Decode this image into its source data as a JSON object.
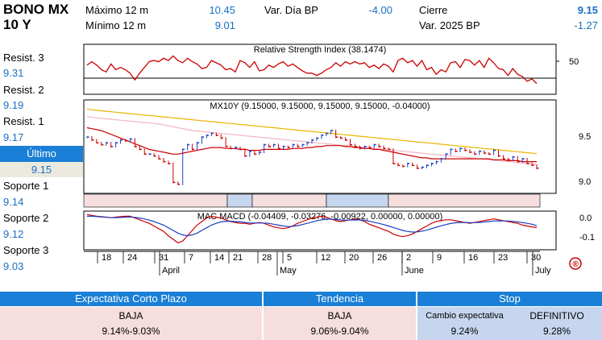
{
  "header": {
    "title_line1": "BONO MX",
    "title_line2": "10 Y",
    "max12_label": "Máximo 12 m",
    "max12_value": "10.45",
    "min12_label": "Mínimo 12 m",
    "min12_value": "9.01",
    "vardia_label": "Var. Día BP",
    "vardia_value": "-4.00",
    "cierre_label": "Cierre",
    "cierre_value": "9.15",
    "var2025_label": "Var. 2025 BP",
    "var2025_value": "-1.27"
  },
  "levels": {
    "resist3_label": "Resist. 3",
    "resist3_value": "9.31",
    "resist2_label": "Resist. 2",
    "resist2_value": "9.19",
    "resist1_label": "Resist. 1",
    "resist1_value": "9.17",
    "ultimo_label": "Último",
    "ultimo_value": "9.15",
    "soporte1_label": "Soporte 1",
    "soporte1_value": "9.14",
    "soporte2_label": "Soporte 2",
    "soporte2_value": "9.12",
    "soporte3_label": "Soporte 3",
    "soporte3_value": "9.03"
  },
  "chart_data": [
    {
      "type": "line",
      "title": "Relative Strength Index (38.1474)",
      "ylim": [
        30,
        70
      ],
      "yticks": [
        "50"
      ],
      "values": [
        54,
        57,
        54,
        50,
        48,
        55,
        50,
        52,
        50,
        47,
        41,
        47,
        52,
        57,
        58,
        57,
        60,
        58,
        62,
        58,
        56,
        60,
        57,
        55,
        51,
        52,
        58,
        56,
        54,
        50,
        51,
        48,
        58,
        56,
        52,
        57,
        49,
        50,
        54,
        52,
        55,
        57,
        53,
        55,
        52,
        49,
        47,
        47,
        45,
        47,
        50,
        52,
        56,
        53,
        57,
        55,
        57,
        55,
        56,
        52,
        54,
        51,
        55,
        53,
        48,
        58,
        60,
        56,
        58,
        53,
        58,
        50,
        52,
        46,
        50,
        48,
        56,
        57,
        52,
        59,
        58,
        54,
        58,
        52,
        60,
        56,
        51,
        50,
        45,
        51,
        46,
        44,
        40,
        42,
        38
      ]
    },
    {
      "type": "bar",
      "title": "MX10Y (9.15000, 9.15000, 9.15000, 9.15000, -0.04000)",
      "ylim": [
        8.9,
        9.85
      ],
      "yticks": [
        "9.5",
        "9.0"
      ],
      "close": [
        9.48,
        9.45,
        9.42,
        9.4,
        9.42,
        9.38,
        9.42,
        9.45,
        9.44,
        9.46,
        9.38,
        9.35,
        9.3,
        9.3,
        9.28,
        9.25,
        9.22,
        9.2,
        9.0,
        8.98,
        9.35,
        9.4,
        9.35,
        9.42,
        9.48,
        9.5,
        9.52,
        9.5,
        9.47,
        9.38,
        9.36,
        9.37,
        9.35,
        9.28,
        9.33,
        9.3,
        9.32,
        9.4,
        9.38,
        9.4,
        9.36,
        9.38,
        9.37,
        9.4,
        9.38,
        9.4,
        9.42,
        9.45,
        9.47,
        9.5,
        9.52,
        9.55,
        9.48,
        9.47,
        9.45,
        9.4,
        9.38,
        9.36,
        9.38,
        9.37,
        9.4,
        9.38,
        9.36,
        9.35,
        9.2,
        9.18,
        9.17,
        9.2,
        9.18,
        9.15,
        9.16,
        9.18,
        9.2,
        9.22,
        9.25,
        9.3,
        9.35,
        9.33,
        9.36,
        9.34,
        9.32,
        9.3,
        9.33,
        9.31,
        9.3,
        9.34,
        9.28,
        9.25,
        9.24,
        9.27,
        9.22,
        9.25,
        9.2,
        9.18,
        9.15
      ],
      "series": [
        {
          "values": [
            9.78,
            9.77,
            9.765,
            9.76,
            9.755,
            9.75,
            9.745,
            9.74,
            9.735,
            9.73,
            9.725,
            9.72,
            9.715,
            9.71,
            9.705,
            9.7,
            9.695,
            9.69,
            9.685,
            9.68,
            9.675,
            9.67,
            9.665,
            9.66,
            9.655,
            9.65,
            9.645,
            9.64,
            9.635,
            9.63,
            9.625,
            9.62,
            9.615,
            9.61,
            9.605,
            9.6,
            9.595,
            9.59,
            9.585,
            9.58,
            9.575,
            9.57,
            9.565,
            9.56,
            9.555,
            9.55,
            9.545,
            9.54,
            9.535,
            9.53,
            9.525,
            9.52,
            9.515,
            9.51,
            9.505,
            9.5,
            9.495,
            9.49,
            9.485,
            9.48,
            9.475,
            9.47,
            9.465,
            9.46,
            9.455,
            9.45,
            9.445,
            9.44,
            9.435,
            9.43,
            9.425,
            9.42,
            9.415,
            9.41,
            9.405,
            9.4,
            9.395,
            9.39,
            9.385,
            9.38,
            9.375,
            9.37,
            9.365,
            9.36,
            9.355,
            9.35,
            9.345,
            9.34,
            9.335,
            9.33,
            9.325,
            9.32,
            9.315,
            9.31,
            9.305
          ],
          "color": "#e8b400"
        },
        {
          "values": [
            9.7,
            9.69,
            9.685,
            9.68,
            9.675,
            9.67,
            9.665,
            9.66,
            9.655,
            9.65,
            9.645,
            9.64,
            9.635,
            9.63,
            9.625,
            9.62,
            9.61,
            9.6,
            9.59,
            9.58,
            9.57,
            9.56,
            9.55,
            9.545,
            9.54,
            9.535,
            9.53,
            9.525,
            9.52,
            9.515,
            9.51,
            9.505,
            9.5,
            9.495,
            9.49,
            9.485,
            9.48,
            9.475,
            9.47,
            9.465,
            9.46,
            9.455,
            9.45,
            9.445,
            9.44,
            9.435,
            9.43,
            9.425,
            9.42,
            9.415,
            9.41,
            9.405,
            9.4,
            9.395,
            9.39,
            9.385,
            9.38,
            9.375,
            9.37,
            9.365,
            9.36,
            9.355,
            9.35,
            9.345,
            9.34,
            9.335,
            9.33,
            9.325,
            9.32,
            9.315,
            9.31,
            9.305,
            9.3,
            9.295,
            9.29,
            9.285,
            9.28,
            9.275,
            9.27,
            9.265,
            9.26,
            9.255,
            9.25,
            9.245,
            9.24,
            9.235,
            9.23,
            9.225,
            9.22,
            9.215,
            9.21,
            9.205,
            9.2,
            9.195,
            9.19
          ],
          "color": "#f2b4c0"
        },
        {
          "values": [
            9.58,
            9.57,
            9.56,
            9.55,
            9.53,
            9.51,
            9.49,
            9.47,
            9.45,
            9.43,
            9.41,
            9.39,
            9.37,
            9.35,
            9.34,
            9.33,
            9.32,
            9.31,
            9.3,
            9.3,
            9.31,
            9.32,
            9.33,
            9.34,
            9.35,
            9.36,
            9.37,
            9.37,
            9.37,
            9.36,
            9.36,
            9.36,
            9.35,
            9.35,
            9.34,
            9.34,
            9.34,
            9.35,
            9.35,
            9.35,
            9.35,
            9.35,
            9.35,
            9.36,
            9.36,
            9.36,
            9.37,
            9.37,
            9.38,
            9.38,
            9.39,
            9.39,
            9.39,
            9.39,
            9.38,
            9.38,
            9.37,
            9.37,
            9.36,
            9.36,
            9.35,
            9.35,
            9.34,
            9.33,
            9.32,
            9.31,
            9.3,
            9.29,
            9.28,
            9.27,
            9.26,
            9.26,
            9.25,
            9.25,
            9.25,
            9.25,
            9.25,
            9.25,
            9.25,
            9.25,
            9.25,
            9.25,
            9.25,
            9.25,
            9.25,
            9.24,
            9.24,
            9.24,
            9.23,
            9.23,
            9.23,
            9.22,
            9.22,
            9.22,
            9.22
          ],
          "color": "#cc0000"
        }
      ]
    },
    {
      "type": "line",
      "title": "MAC MACD (-0.04409, -0.03276, -0.00922, 0.00000, 0.00000)",
      "ylim": [
        -0.16,
        0.04
      ],
      "yticks": [
        "0.0",
        "-0.1"
      ],
      "series": [
        {
          "values": [
            0.03,
            0.025,
            0.02,
            0.018,
            0.015,
            0.012,
            0.015,
            0.018,
            0.02,
            0.02,
            0.01,
            0,
            -0.01,
            -0.02,
            -0.035,
            -0.05,
            -0.065,
            -0.09,
            -0.11,
            -0.13,
            -0.12,
            -0.09,
            -0.06,
            -0.03,
            -0.01,
            0.01,
            0.02,
            0.015,
            0.01,
            0,
            -0.01,
            -0.015,
            -0.02,
            -0.02,
            -0.025,
            -0.02,
            -0.015,
            -0.02,
            -0.03,
            -0.04,
            -0.045,
            -0.05,
            -0.045,
            -0.035,
            -0.02,
            -0.01,
            0,
            0.01,
            0.015,
            0.02,
            0.015,
            0.005,
            -0.005,
            -0.01,
            -0.005,
            0,
            0.005,
            0,
            -0.01,
            -0.025,
            -0.035,
            -0.045,
            -0.055,
            -0.065,
            -0.08,
            -0.09,
            -0.095,
            -0.09,
            -0.08,
            -0.065,
            -0.05,
            -0.035,
            -0.02,
            -0.01,
            -0.005,
            0,
            0,
            -0.005,
            -0.01,
            -0.015,
            -0.02,
            -0.015,
            -0.01,
            -0.005,
            0,
            0.005,
            0,
            -0.005,
            -0.01,
            -0.015,
            -0.02,
            -0.03,
            -0.035,
            -0.04,
            -0.044
          ],
          "color": "#cc0000"
        },
        {
          "values": [
            0.02,
            0.02,
            0.018,
            0.016,
            0.014,
            0.012,
            0.012,
            0.013,
            0.015,
            0.016,
            0.014,
            0.01,
            0.005,
            -0.002,
            -0.01,
            -0.02,
            -0.03,
            -0.045,
            -0.06,
            -0.075,
            -0.085,
            -0.09,
            -0.085,
            -0.075,
            -0.06,
            -0.045,
            -0.03,
            -0.02,
            -0.012,
            -0.008,
            -0.008,
            -0.01,
            -0.012,
            -0.015,
            -0.018,
            -0.018,
            -0.018,
            -0.018,
            -0.02,
            -0.025,
            -0.03,
            -0.035,
            -0.038,
            -0.037,
            -0.033,
            -0.027,
            -0.02,
            -0.013,
            -0.006,
            0,
            0.003,
            0.004,
            0.002,
            -0.001,
            -0.002,
            -0.002,
            -0.001,
            -0.001,
            -0.003,
            -0.008,
            -0.014,
            -0.02,
            -0.027,
            -0.035,
            -0.043,
            -0.052,
            -0.06,
            -0.066,
            -0.069,
            -0.068,
            -0.064,
            -0.058,
            -0.05,
            -0.042,
            -0.034,
            -0.027,
            -0.021,
            -0.017,
            -0.015,
            -0.015,
            -0.016,
            -0.016,
            -0.015,
            -0.013,
            -0.01,
            -0.007,
            -0.006,
            -0.006,
            -0.007,
            -0.009,
            -0.012,
            -0.016,
            -0.02,
            -0.025,
            -0.033
          ],
          "color": "#1a3fc4"
        }
      ],
      "xtick_labels": [
        "18",
        "24",
        "31",
        "7",
        "14",
        "21",
        "28",
        "5",
        "12",
        "20",
        "26",
        "2",
        "9",
        "16",
        "23",
        "30"
      ],
      "xmonth_labels": [
        "April",
        "May",
        "June",
        "July"
      ]
    }
  ],
  "bottom_table": {
    "expectativa_header": "Expectativa Corto Plazo",
    "expectativa_value": "BAJA",
    "expectativa_range": "9.14%-9.03%",
    "tendencia_header": "Tendencia",
    "tendencia_value": "BAJA",
    "tendencia_range": "9.06%-9.04%",
    "stop_header": "Stop",
    "cambio_label": "Cambio expectativa",
    "cambio_value": "9.24%",
    "definitivo_label": "DEFINITIVO",
    "definitivo_value": "9.28%"
  },
  "colors": {
    "accent": "#1a7fd6",
    "value_text": "#1a6fc4",
    "pink": "#f6dede",
    "blue_light": "#c5d6ee"
  }
}
